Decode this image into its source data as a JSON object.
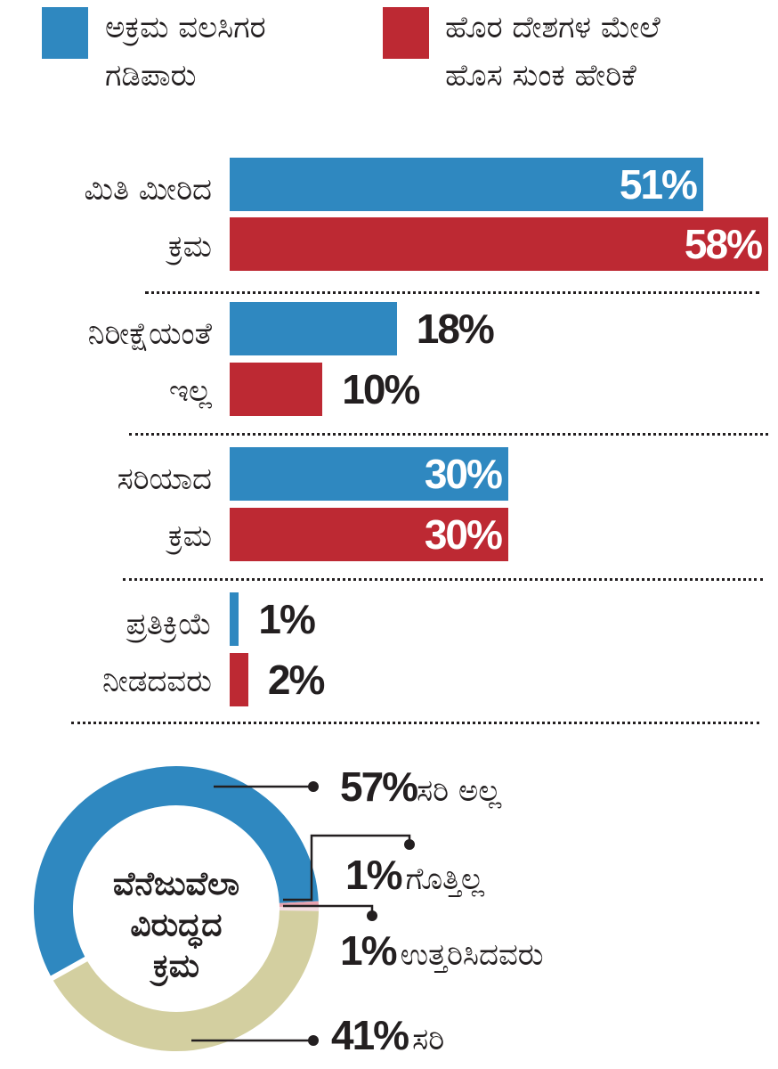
{
  "colors": {
    "blue": "#2f88c0",
    "red": "#bd2933",
    "tan": "#d3cfa0",
    "pink": "#e8a3b0",
    "ink": "#231f20"
  },
  "legend": [
    {
      "lines": [
        "ಅಕ್ರಮ ವಲಸಿಗರ",
        "ಗಡಿಪಾರು"
      ],
      "color": "#2f88c0"
    },
    {
      "lines": [
        "ಹೊರ ದೇಶಗಳ ಮೇಲೆ",
        "ಹೊಸ ಸುಂಕ ಹೇರಿಕೆ"
      ],
      "color": "#bd2933"
    }
  ],
  "chart_data": [
    {
      "type": "bar",
      "orientation": "horizontal",
      "categories": [
        [
          "ಮಿತಿ ಮೀರಿದ",
          "ಕ್ರಮ"
        ],
        [
          "ನಿರೀಕ್ಷೆಯಂತೆ",
          "ಇಲ್ಲ"
        ],
        [
          "ಸರಿಯಾದ",
          "ಕ್ರಮ"
        ],
        [
          "ಪ್ರತಿಕ್ರಿಯೆ",
          "ನೀಡದವರು"
        ]
      ],
      "series": [
        {
          "name": "ಅಕ್ರಮ ವಲಸಿಗರ ಗಡಿಪಾರು",
          "color": "#2f88c0",
          "values": [
            51,
            18,
            30,
            1
          ],
          "labels": [
            "51%",
            "18%",
            "30%",
            "1%"
          ]
        },
        {
          "name": "ಹೊರ ದೇಶಗಳ ಮೇಲೆ ಹೊಸ ಸುಂಕ ಹೇರಿಕೆ",
          "color": "#bd2933",
          "values": [
            58,
            10,
            30,
            2
          ],
          "labels": [
            "58%",
            "10%",
            "30%",
            "2%"
          ]
        }
      ],
      "xlim": [
        0,
        58
      ]
    },
    {
      "type": "pie",
      "donut": true,
      "title": [
        "ವೆನೆಜುವೆಲಾ",
        "ವಿರುದ್ಧದ",
        "ಕ್ರಮ"
      ],
      "slices": [
        {
          "value": 57,
          "num": "57%",
          "text": "ಸರಿ ಅಲ್ಲ",
          "color": "#2f88c0"
        },
        {
          "value": 1,
          "num": "1%",
          "text": "ಗೊತ್ತಿಲ್ಲ",
          "color": "#e8a3b0"
        },
        {
          "value": 1,
          "num": "1%",
          "text": "ಉತ್ತರಿಸಿದವರು",
          "color": "#ffffff"
        },
        {
          "value": 41,
          "num": "41%",
          "text": "ಸರಿ",
          "color": "#d3cfa0"
        }
      ]
    }
  ]
}
